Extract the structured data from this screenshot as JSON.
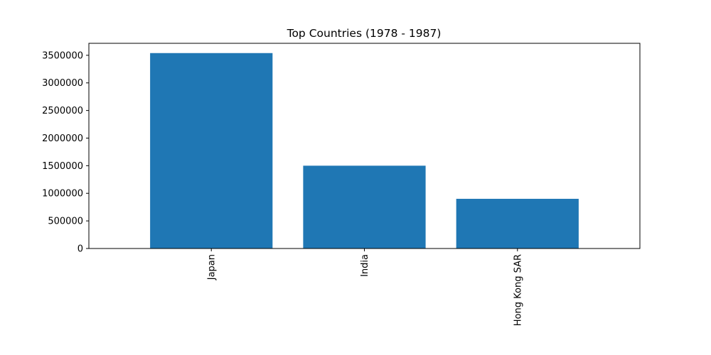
{
  "chart_data": {
    "type": "bar",
    "title": "Top Countries (1978 - 1987)",
    "xlabel": "",
    "ylabel": "",
    "categories": [
      "Japan",
      "India",
      "Hong Kong SAR"
    ],
    "values": [
      3540000,
      1500000,
      900000
    ],
    "yticks": [
      0,
      500000,
      1000000,
      1500000,
      2000000,
      2500000,
      3000000,
      3500000
    ],
    "ytick_labels": [
      "0",
      "500000",
      "1000000",
      "1500000",
      "2000000",
      "2500000",
      "3000000",
      "3500000"
    ],
    "ylim": [
      0,
      3717000
    ],
    "grid": false,
    "legend": "none",
    "x_tick_rotation": "vertical",
    "bar_color": "#1f77b4"
  }
}
